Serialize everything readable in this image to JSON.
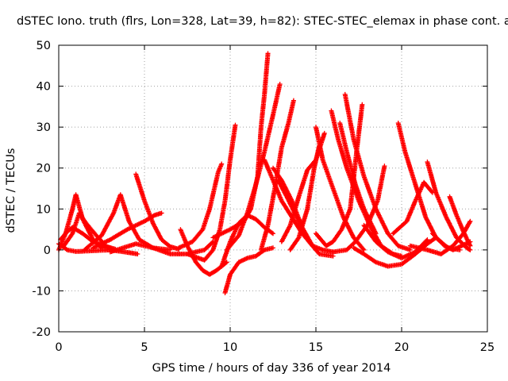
{
  "chart_data": {
    "type": "scatter",
    "title": "dSTEC Iono. truth (flrs, Lon=328, Lat=39, h=82): STEC-STEC_elemax in phase cont. a",
    "xlabel": "GPS time / hours of day 336 of year 2014",
    "ylabel": "dSTEC  / TECUs",
    "xlim": [
      0,
      25
    ],
    "ylim": [
      -20,
      50
    ],
    "xticks": [
      "0",
      "5",
      "10",
      "15",
      "20",
      "25"
    ],
    "yticks": [
      "-20",
      "-10",
      "0",
      "10",
      "20",
      "30",
      "40",
      "50"
    ],
    "grid": true,
    "marker": "plus",
    "color": "#ff0000",
    "series": [
      {
        "values": [
          [
            0.0,
            1.5
          ],
          [
            0.5,
            0.0
          ],
          [
            1.0,
            -0.4
          ],
          [
            2.0,
            -0.2
          ],
          [
            3.0,
            0.0
          ],
          [
            4.0,
            -0.6
          ],
          [
            4.6,
            -1.0
          ]
        ]
      },
      {
        "values": [
          [
            0.0,
            0.0
          ],
          [
            0.4,
            4.0
          ],
          [
            0.8,
            10.0
          ],
          [
            1.0,
            13.5
          ],
          [
            1.4,
            7.5
          ],
          [
            2.0,
            2.5
          ],
          [
            2.5,
            0.5
          ],
          [
            3.0,
            0.5
          ]
        ]
      },
      {
        "values": [
          [
            0.3,
            1.0
          ],
          [
            0.8,
            4.0
          ],
          [
            1.2,
            9.0
          ],
          [
            1.6,
            6.5
          ],
          [
            2.2,
            3.5
          ],
          [
            2.8,
            0.8
          ],
          [
            3.3,
            0.2
          ]
        ]
      },
      {
        "values": [
          [
            0.1,
            2.5
          ],
          [
            0.5,
            4.5
          ],
          [
            0.8,
            5.5
          ],
          [
            1.4,
            4.0
          ],
          [
            2.0,
            2.0
          ],
          [
            3.0,
            0.5
          ]
        ]
      },
      {
        "values": [
          [
            1.5,
            0.0
          ],
          [
            2.5,
            3.5
          ],
          [
            3.2,
            9.0
          ],
          [
            3.6,
            13.5
          ],
          [
            4.1,
            7.0
          ],
          [
            4.7,
            2.5
          ],
          [
            5.5,
            0.5
          ],
          [
            6.5,
            0.0
          ]
        ]
      },
      {
        "values": [
          [
            2.0,
            0.5
          ],
          [
            3.0,
            2.5
          ],
          [
            4.0,
            5.0
          ],
          [
            5.0,
            7.0
          ],
          [
            5.6,
            8.5
          ],
          [
            6.0,
            9.0
          ]
        ]
      },
      {
        "values": [
          [
            4.5,
            18.5
          ],
          [
            5.0,
            12.0
          ],
          [
            5.5,
            6.5
          ],
          [
            6.0,
            2.5
          ],
          [
            6.5,
            0.8
          ],
          [
            7.0,
            0.2
          ]
        ]
      },
      {
        "values": [
          [
            3.0,
            -0.5
          ],
          [
            4.5,
            1.5
          ],
          [
            5.5,
            0.5
          ],
          [
            6.5,
            -1.0
          ],
          [
            7.5,
            -1.0
          ],
          [
            8.5,
            0.0
          ],
          [
            9.0,
            2.0
          ]
        ]
      },
      {
        "values": [
          [
            7.1,
            5.0
          ],
          [
            7.5,
            1.0
          ],
          [
            8.0,
            -3.0
          ],
          [
            8.4,
            -5.0
          ],
          [
            8.8,
            -6.0
          ],
          [
            9.2,
            -5.0
          ],
          [
            9.8,
            -3.0
          ]
        ]
      },
      {
        "values": [
          [
            7.0,
            0.5
          ],
          [
            7.8,
            2.0
          ],
          [
            8.4,
            5.0
          ],
          [
            8.8,
            10.0
          ],
          [
            9.3,
            19.0
          ],
          [
            9.5,
            21.0
          ]
        ]
      },
      {
        "values": [
          [
            7.5,
            -1.0
          ],
          [
            8.5,
            -2.5
          ],
          [
            9.0,
            0.0
          ],
          [
            9.4,
            5.0
          ],
          [
            9.7,
            12.0
          ],
          [
            10.0,
            22.0
          ],
          [
            10.3,
            30.5
          ]
        ]
      },
      {
        "values": [
          [
            9.7,
            -10.5
          ],
          [
            10.0,
            -6.0
          ],
          [
            10.5,
            -3.0
          ],
          [
            11.0,
            -2.0
          ],
          [
            11.5,
            -1.5
          ],
          [
            12.0,
            0.0
          ],
          [
            12.5,
            0.5
          ]
        ]
      },
      {
        "values": [
          [
            9.5,
            -4.0
          ],
          [
            10.0,
            2.0
          ],
          [
            10.5,
            6.5
          ],
          [
            11.0,
            8.5
          ],
          [
            11.5,
            7.5
          ],
          [
            12.0,
            5.5
          ],
          [
            12.5,
            4.0
          ]
        ]
      },
      {
        "values": [
          [
            9.0,
            3.0
          ],
          [
            10.0,
            5.0
          ],
          [
            10.8,
            7.0
          ],
          [
            11.2,
            10.0
          ],
          [
            11.6,
            18.0
          ],
          [
            11.8,
            30.0
          ],
          [
            12.0,
            38.0
          ],
          [
            12.2,
            48.0
          ]
        ]
      },
      {
        "values": [
          [
            9.8,
            0.0
          ],
          [
            10.5,
            3.5
          ],
          [
            11.0,
            9.0
          ],
          [
            11.5,
            16.0
          ],
          [
            12.0,
            24.0
          ],
          [
            12.5,
            33.0
          ],
          [
            12.9,
            40.5
          ]
        ]
      },
      {
        "values": [
          [
            11.8,
            0.0
          ],
          [
            12.2,
            6.0
          ],
          [
            12.6,
            15.0
          ],
          [
            13.0,
            25.0
          ],
          [
            13.4,
            31.0
          ],
          [
            13.7,
            36.5
          ]
        ]
      },
      {
        "values": [
          [
            12.5,
            20.0
          ],
          [
            13.0,
            17.0
          ],
          [
            13.6,
            12.0
          ],
          [
            14.2,
            5.5
          ],
          [
            14.8,
            1.0
          ],
          [
            15.4,
            0.0
          ],
          [
            16.0,
            -0.5
          ]
        ]
      },
      {
        "values": [
          [
            12.8,
            17.0
          ],
          [
            13.3,
            13.0
          ],
          [
            14.0,
            7.0
          ],
          [
            14.6,
            2.0
          ],
          [
            15.2,
            -1.0
          ],
          [
            16.0,
            -1.5
          ]
        ]
      },
      {
        "values": [
          [
            12.0,
            22.0
          ],
          [
            12.4,
            18.0
          ],
          [
            13.0,
            12.0
          ],
          [
            13.6,
            8.0
          ],
          [
            14.2,
            4.0
          ],
          [
            14.8,
            1.0
          ]
        ]
      },
      {
        "values": [
          [
            13.5,
            0.0
          ],
          [
            14.0,
            3.0
          ],
          [
            14.5,
            10.0
          ],
          [
            14.9,
            20.0
          ],
          [
            15.2,
            25.5
          ]
        ]
      },
      {
        "values": [
          [
            13.0,
            2.0
          ],
          [
            13.5,
            6.0
          ],
          [
            14.0,
            13.0
          ],
          [
            14.5,
            19.5
          ],
          [
            15.0,
            22.0
          ],
          [
            15.5,
            28.5
          ]
        ]
      },
      {
        "values": [
          [
            15.9,
            34.0
          ],
          [
            16.3,
            27.0
          ],
          [
            16.8,
            20.0
          ],
          [
            17.5,
            12.0
          ],
          [
            18.2,
            5.5
          ],
          [
            18.8,
            1.0
          ],
          [
            19.5,
            -1.0
          ],
          [
            20.0,
            -1.5
          ]
        ]
      },
      {
        "values": [
          [
            16.7,
            38.0
          ],
          [
            17.2,
            27.0
          ],
          [
            17.8,
            18.0
          ],
          [
            18.5,
            10.0
          ],
          [
            19.2,
            4.0
          ],
          [
            19.8,
            1.0
          ],
          [
            20.5,
            0.0
          ]
        ]
      },
      {
        "values": [
          [
            15.0,
            4.0
          ],
          [
            15.6,
            1.0
          ],
          [
            16.0,
            2.0
          ],
          [
            16.5,
            5.0
          ],
          [
            17.0,
            10.0
          ],
          [
            17.4,
            25.0
          ],
          [
            17.7,
            35.5
          ]
        ]
      },
      {
        "values": [
          [
            16.4,
            31.0
          ],
          [
            16.8,
            24.0
          ],
          [
            17.3,
            16.0
          ],
          [
            17.8,
            10.0
          ],
          [
            18.5,
            4.0
          ]
        ]
      },
      {
        "values": [
          [
            15.0,
            30.0
          ],
          [
            15.4,
            22.0
          ],
          [
            16.0,
            15.0
          ],
          [
            16.6,
            8.0
          ],
          [
            17.2,
            3.0
          ],
          [
            17.8,
            0.0
          ]
        ]
      },
      {
        "values": [
          [
            16.0,
            -0.5
          ],
          [
            16.8,
            0.0
          ],
          [
            17.3,
            2.0
          ],
          [
            18.0,
            6.0
          ],
          [
            18.6,
            12.0
          ],
          [
            19.0,
            20.5
          ]
        ]
      },
      {
        "values": [
          [
            17.2,
            0.5
          ],
          [
            17.8,
            -1.0
          ],
          [
            18.5,
            -3.0
          ],
          [
            19.2,
            -4.0
          ],
          [
            20.0,
            -3.5
          ],
          [
            20.8,
            -1.0
          ],
          [
            21.5,
            1.5
          ],
          [
            22.0,
            3.0
          ]
        ]
      },
      {
        "values": [
          [
            17.8,
            6.0
          ],
          [
            18.5,
            2.0
          ],
          [
            19.2,
            -0.5
          ],
          [
            20.0,
            -2.0
          ],
          [
            20.8,
            -0.5
          ],
          [
            21.5,
            2.5
          ]
        ]
      },
      {
        "values": [
          [
            19.8,
            31.0
          ],
          [
            20.2,
            24.0
          ],
          [
            20.8,
            16.0
          ],
          [
            21.4,
            8.0
          ],
          [
            22.0,
            3.0
          ],
          [
            22.7,
            0.5
          ],
          [
            23.4,
            0.0
          ]
        ]
      },
      {
        "values": [
          [
            21.5,
            21.5
          ],
          [
            22.0,
            14.0
          ],
          [
            22.6,
            8.0
          ],
          [
            23.2,
            3.0
          ],
          [
            23.8,
            0.5
          ],
          [
            24.0,
            0.0
          ]
        ]
      },
      {
        "values": [
          [
            19.5,
            4.0
          ],
          [
            20.3,
            7.0
          ],
          [
            20.8,
            12.0
          ],
          [
            21.3,
            16.5
          ],
          [
            21.8,
            14.0
          ]
        ]
      },
      {
        "values": [
          [
            22.8,
            13.0
          ],
          [
            23.2,
            8.5
          ],
          [
            23.6,
            4.5
          ],
          [
            24.0,
            1.0
          ]
        ]
      },
      {
        "values": [
          [
            20.5,
            1.0
          ],
          [
            21.5,
            0.0
          ],
          [
            22.3,
            -1.0
          ],
          [
            23.0,
            1.0
          ],
          [
            23.6,
            4.0
          ],
          [
            24.0,
            7.0
          ]
        ]
      },
      {
        "values": [
          [
            21.8,
            4.0
          ],
          [
            22.5,
            1.0
          ],
          [
            23.0,
            0.0
          ],
          [
            23.5,
            1.0
          ],
          [
            24.0,
            2.0
          ]
        ]
      }
    ]
  }
}
